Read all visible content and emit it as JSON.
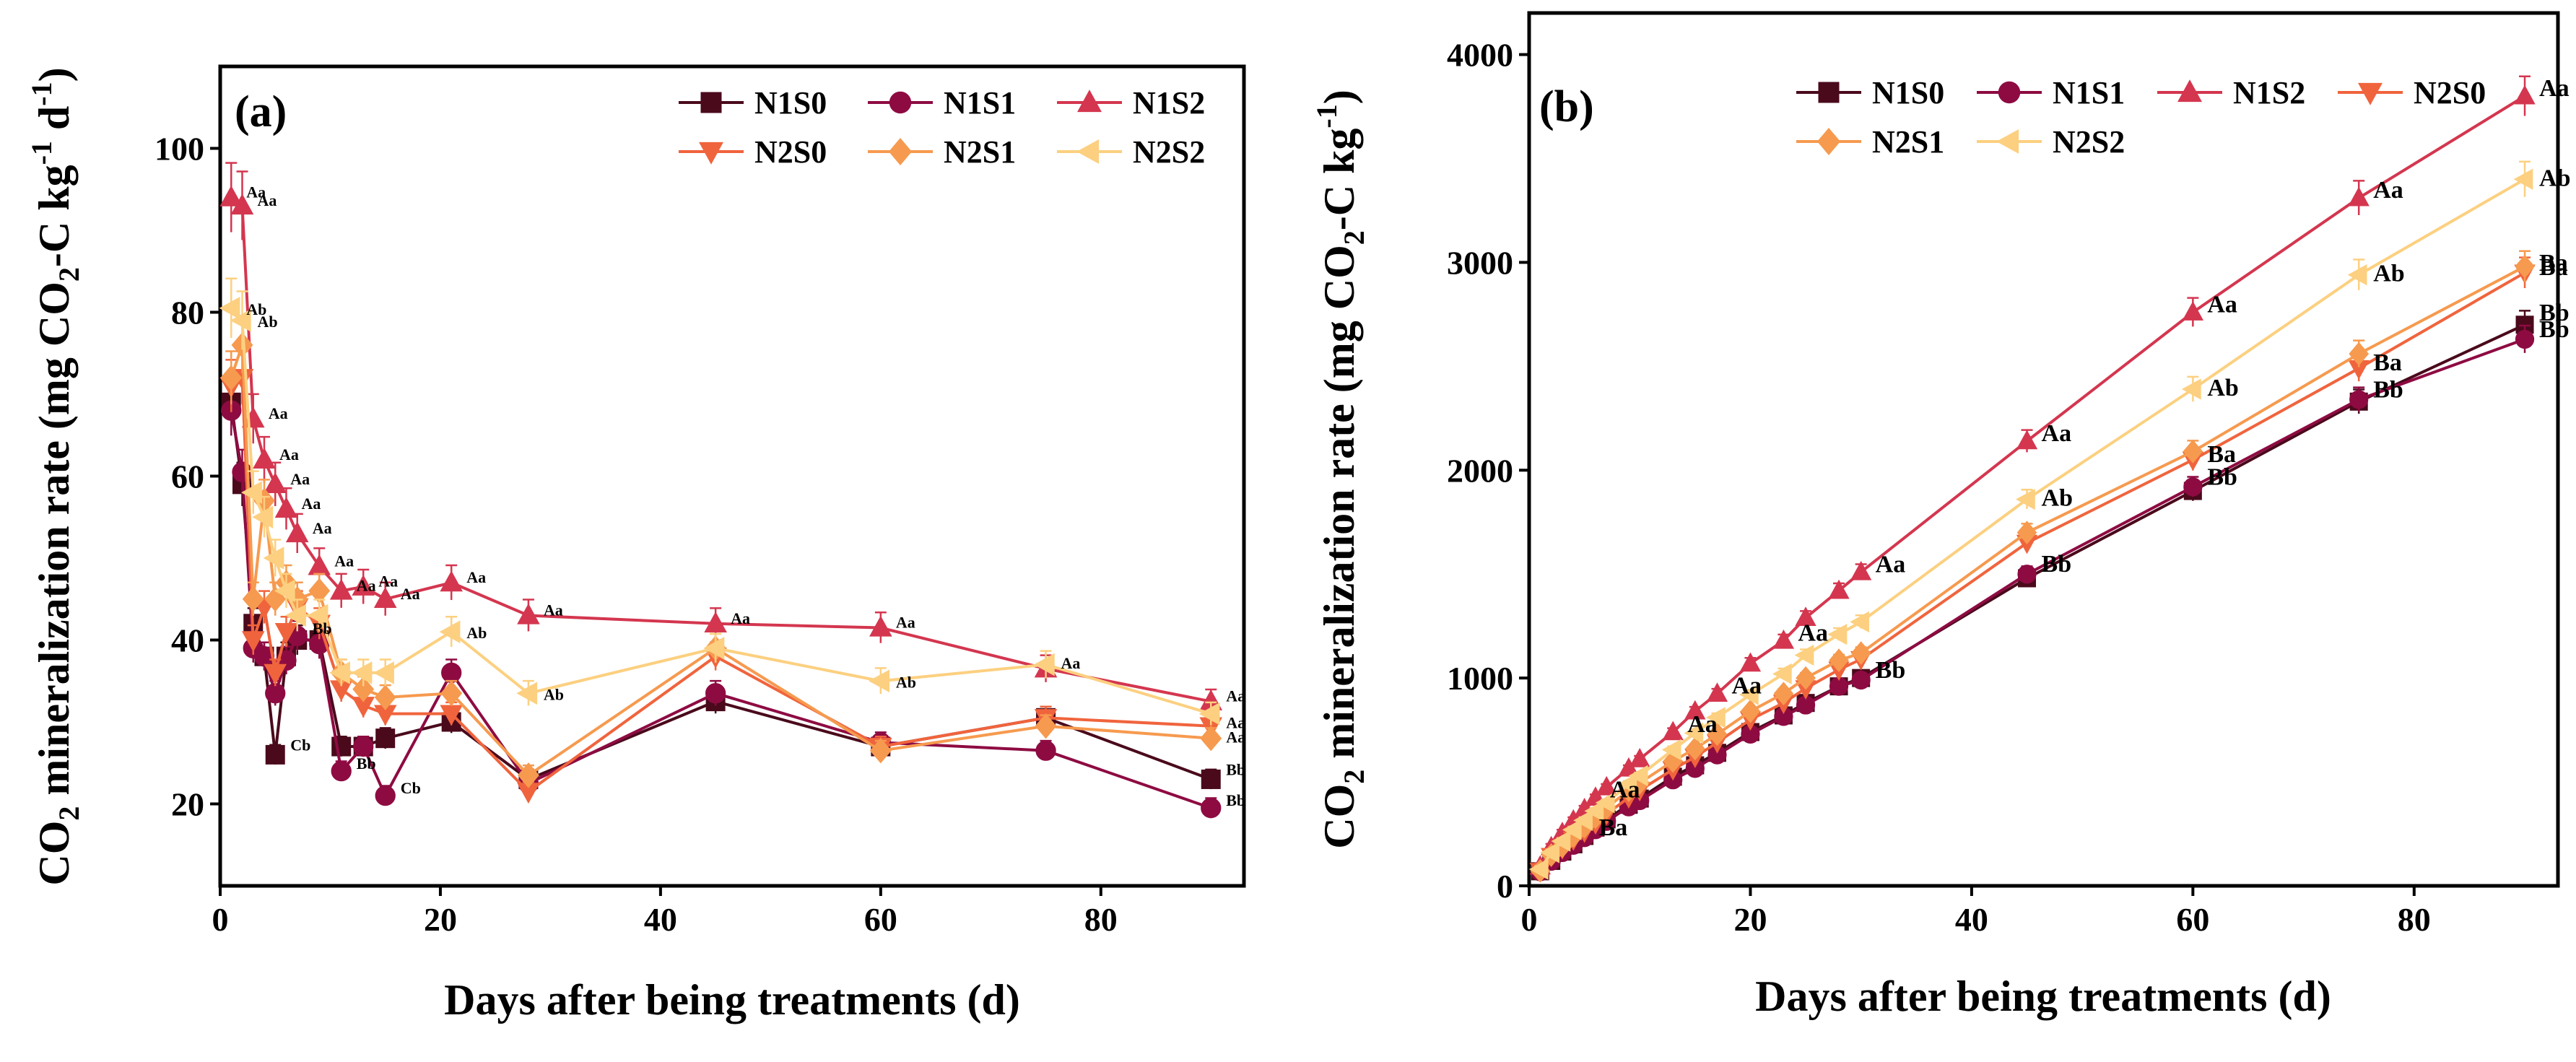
{
  "chart_data": [
    {
      "panel": "(a)",
      "type": "line",
      "xlabel": "Days after being treatments (d)",
      "ylabel": "CO2 mineralization rate (mg CO2-C kg-1 d-1)",
      "xlim": [
        0,
        93
      ],
      "ylim": [
        10,
        110
      ],
      "xticks": [
        0,
        20,
        40,
        60,
        80
      ],
      "yticks": [
        20,
        40,
        60,
        80,
        100
      ],
      "x": [
        1,
        2,
        3,
        4,
        5,
        6,
        7,
        9,
        11,
        13,
        15,
        21,
        28,
        45,
        60,
        75,
        90
      ],
      "legend_position": "top-right",
      "series": [
        {
          "name": "N1S0",
          "marker": "square",
          "color": "#4a0a1c",
          "values": [
            69,
            59,
            42,
            38,
            26,
            38,
            40,
            40,
            27,
            27,
            28,
            30,
            23,
            32.5,
            27,
            30.5,
            23
          ],
          "labels": [
            "",
            "",
            "",
            "",
            "Cb",
            "",
            "",
            "",
            "",
            "",
            "",
            "",
            "",
            "",
            "",
            "",
            "Bb"
          ]
        },
        {
          "name": "N1S1",
          "marker": "circle",
          "color": "#8e0b42",
          "values": [
            68,
            60.5,
            39,
            38,
            33.5,
            37.5,
            40.5,
            39.5,
            24,
            27,
            21,
            36,
            22.5,
            33.5,
            27.5,
            26.5,
            19.5
          ],
          "labels": [
            "",
            "",
            "",
            "",
            "",
            "",
            "Bb",
            "",
            "Bb",
            "",
            "Cb",
            "",
            "",
            "",
            "",
            "",
            "Bb"
          ]
        },
        {
          "name": "N1S2",
          "marker": "triangle-up",
          "color": "#d4364f",
          "values": [
            94,
            93,
            67,
            62,
            59,
            56,
            53,
            49,
            46,
            46.5,
            45,
            47,
            43,
            42,
            41.5,
            36.5,
            32.5
          ],
          "labels": [
            "Aa",
            "Aa",
            "Aa",
            "Aa",
            "Aa",
            "Aa",
            "Aa",
            "Aa",
            "Aa",
            "Aa",
            "Aa",
            "Aa",
            "Aa",
            "Aa",
            "Aa",
            "Aa",
            "Aa"
          ]
        },
        {
          "name": "N2S0",
          "marker": "triangle-down",
          "color": "#f0643d",
          "values": [
            71,
            72,
            40,
            44,
            36,
            41,
            44,
            42,
            34,
            32,
            31,
            31,
            21.5,
            38,
            27,
            30.5,
            29.5
          ],
          "labels": [
            "",
            "",
            "",
            "",
            "",
            "",
            "",
            "",
            "",
            "",
            "",
            "",
            "",
            "",
            "",
            "",
            "Aa"
          ]
        },
        {
          "name": "N2S1",
          "marker": "diamond",
          "color": "#f69a4f",
          "values": [
            72,
            76,
            45,
            57,
            45,
            47,
            45,
            46,
            36,
            34,
            33,
            33.5,
            23.5,
            39,
            26.5,
            29.5,
            28
          ],
          "labels": [
            "",
            "",
            "",
            "",
            "",
            "",
            "",
            "",
            "",
            "",
            "",
            "",
            "",
            "",
            "",
            "",
            "Aa"
          ]
        },
        {
          "name": "N2S2",
          "marker": "triangle-left",
          "color": "#fcd080",
          "values": [
            80.5,
            79,
            58,
            55,
            50,
            46,
            43,
            43,
            36,
            36,
            36,
            41,
            33.5,
            39,
            35,
            37,
            31
          ],
          "labels": [
            "Ab",
            "Ab",
            "",
            "",
            "",
            "",
            "",
            "",
            "",
            "",
            "",
            "Ab",
            "Ab",
            "",
            "Ab",
            "",
            ""
          ]
        }
      ]
    },
    {
      "panel": "(b)",
      "type": "line",
      "xlabel": "Days after being treatments (d)",
      "ylabel": "CO2 mineralization rate (mg CO2-C kg-1)",
      "xlim": [
        0,
        93
      ],
      "ylim": [
        0,
        4200
      ],
      "xticks": [
        0,
        20,
        40,
        60,
        80
      ],
      "yticks": [
        0,
        1000,
        2000,
        3000,
        4000
      ],
      "x": [
        1,
        2,
        3,
        4,
        5,
        6,
        7,
        9,
        10,
        13,
        15,
        17,
        20,
        23,
        25,
        28,
        30,
        45,
        60,
        75,
        90
      ],
      "legend_position": "top-left",
      "series": [
        {
          "name": "N1S0",
          "marker": "square",
          "color": "#4a0a1c",
          "values": [
            70,
            120,
            165,
            200,
            240,
            280,
            320,
            390,
            420,
            525,
            580,
            640,
            740,
            820,
            880,
            960,
            1000,
            1480,
            1900,
            2330,
            2700
          ],
          "labels": [
            "",
            "",
            "",
            "",
            "",
            "",
            "",
            "",
            "",
            "",
            "",
            "",
            "",
            "",
            "",
            "",
            "",
            "",
            "",
            "",
            "Bb"
          ]
        },
        {
          "name": "N1S1",
          "marker": "circle",
          "color": "#8e0b42",
          "values": [
            68,
            118,
            160,
            195,
            232,
            270,
            310,
            380,
            410,
            510,
            565,
            630,
            730,
            815,
            870,
            960,
            990,
            1500,
            1920,
            2340,
            2630
          ],
          "labels": [
            "",
            "",
            "",
            "",
            "Ba",
            "",
            "",
            "",
            "",
            "",
            "",
            "",
            "",
            "",
            "",
            "",
            "Bb",
            "Bb",
            "Bb",
            "Bb",
            "Bb"
          ]
        },
        {
          "name": "N1S2",
          "marker": "triangle-up",
          "color": "#d4364f",
          "values": [
            94,
            187,
            255,
            315,
            370,
            425,
            475,
            565,
            610,
            740,
            840,
            925,
            1070,
            1180,
            1290,
            1420,
            1510,
            2140,
            2760,
            3310,
            3800
          ],
          "labels": [
            "",
            "",
            "",
            "",
            "",
            "Aa",
            "",
            "",
            "",
            "Aa",
            "",
            "Aa",
            "",
            "Aa",
            "",
            "",
            "Aa",
            "Aa",
            "Aa",
            "Aa",
            "Aa"
          ]
        },
        {
          "name": "N2S0",
          "marker": "triangle-down",
          "color": "#f0643d",
          "values": [
            71,
            143,
            180,
            222,
            260,
            300,
            345,
            425,
            460,
            560,
            620,
            690,
            800,
            880,
            950,
            1040,
            1090,
            1650,
            2050,
            2490,
            2950
          ],
          "labels": [
            "",
            "",
            "",
            "",
            "",
            "",
            "",
            "",
            "",
            "",
            "",
            "",
            "",
            "",
            "",
            "",
            "",
            "",
            "Ba",
            "Ba",
            "Ba"
          ]
        },
        {
          "name": "N2S1",
          "marker": "diamond",
          "color": "#f69a4f",
          "values": [
            72,
            148,
            190,
            240,
            285,
            330,
            375,
            460,
            495,
            600,
            660,
            730,
            840,
            925,
            1000,
            1085,
            1120,
            1700,
            2090,
            2560,
            2980
          ],
          "labels": [
            "",
            "",
            "",
            "",
            "",
            "",
            "",
            "",
            "",
            "",
            "",
            "",
            "",
            "",
            "",
            "",
            "",
            "",
            "",
            "",
            "Ba"
          ]
        },
        {
          "name": "N2S2",
          "marker": "triangle-left",
          "color": "#fcd080",
          "values": [
            80,
            160,
            215,
            270,
            315,
            360,
            400,
            490,
            530,
            655,
            735,
            810,
            920,
            1020,
            1110,
            1210,
            1270,
            1860,
            2390,
            2940,
            3400
          ],
          "labels": [
            "",
            "",
            "",
            "",
            "",
            "",
            "",
            "",
            "",
            "",
            "",
            "",
            "",
            "",
            "",
            "",
            "",
            "Ab",
            "Ab",
            "Ab",
            "Ab"
          ]
        }
      ]
    }
  ]
}
